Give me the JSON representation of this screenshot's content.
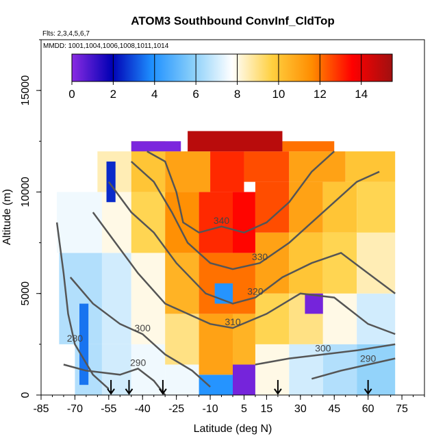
{
  "chart_data": {
    "type": "heatmap",
    "title": "ATOM3 Southbound ConvInf_CldTop",
    "flights_label": "Flts: 2,3,4,5,6,7",
    "dates_label": "MMDD: 1001,1004,1006,1008,1011,1014",
    "xlabel": "Latitude (deg N)",
    "ylabel": "Altitude (m)",
    "xlim": [
      -85,
      85
    ],
    "ylim": [
      0,
      17500
    ],
    "x_ticks": [
      -85,
      -70,
      -55,
      -40,
      -25,
      -10,
      5,
      15,
      30,
      45,
      60,
      75
    ],
    "y_ticks": [
      0,
      5000,
      10000,
      15000
    ],
    "colorbar": {
      "ticks": [
        "0",
        "2",
        "4",
        "6",
        "8",
        "10",
        "12",
        "14"
      ],
      "range": [
        0,
        15.5
      ],
      "colors": [
        "#8a2be2",
        "#0000b4",
        "#1e90ff",
        "#87cefa",
        "#ffffff",
        "#ffd040",
        "#ff8c00",
        "#ff0000",
        "#a01010"
      ]
    },
    "cells": [
      {
        "x": [
          -70,
          -58
        ],
        "y": [
          0,
          2500
        ],
        "v": 6.5
      },
      {
        "x": [
          -58,
          -45
        ],
        "y": [
          0,
          2500
        ],
        "v": 7.0
      },
      {
        "x": [
          -45,
          -30
        ],
        "y": [
          0,
          2500
        ],
        "v": 7.5
      },
      {
        "x": [
          -30,
          -15
        ],
        "y": [
          0,
          1500
        ],
        "v": 7.5
      },
      {
        "x": [
          -15,
          0
        ],
        "y": [
          0,
          1000
        ],
        "v": 4.0
      },
      {
        "x": [
          0,
          10
        ],
        "y": [
          0,
          1500
        ],
        "v": 0.3
      },
      {
        "x": [
          10,
          25
        ],
        "y": [
          0,
          2500
        ],
        "v": 8.0
      },
      {
        "x": [
          25,
          40
        ],
        "y": [
          0,
          2500
        ],
        "v": 7.0
      },
      {
        "x": [
          40,
          55
        ],
        "y": [
          0,
          2500
        ],
        "v": 6.5
      },
      {
        "x": [
          55,
          72
        ],
        "y": [
          0,
          2500
        ],
        "v": 6.0
      },
      {
        "x": [
          -77,
          -58
        ],
        "y": [
          2500,
          7000
        ],
        "v": 6.5
      },
      {
        "x": [
          -58,
          -45
        ],
        "y": [
          2500,
          7000
        ],
        "v": 7.0
      },
      {
        "x": [
          -45,
          -30
        ],
        "y": [
          2500,
          7000
        ],
        "v": 8.0
      },
      {
        "x": [
          -30,
          -15
        ],
        "y": [
          1500,
          4000
        ],
        "v": 9.0
      },
      {
        "x": [
          -15,
          0
        ],
        "y": [
          1000,
          4000
        ],
        "v": 11.0
      },
      {
        "x": [
          0,
          10
        ],
        "y": [
          1500,
          4000
        ],
        "v": 10.5
      },
      {
        "x": [
          10,
          25
        ],
        "y": [
          2500,
          5000
        ],
        "v": 9.5
      },
      {
        "x": [
          25,
          40
        ],
        "y": [
          2500,
          5000
        ],
        "v": 9.0
      },
      {
        "x": [
          40,
          55
        ],
        "y": [
          2500,
          5000
        ],
        "v": 8.0
      },
      {
        "x": [
          55,
          72
        ],
        "y": [
          2500,
          5000
        ],
        "v": 7.0
      },
      {
        "x": [
          -30,
          -15
        ],
        "y": [
          4000,
          7000
        ],
        "v": 10.5
      },
      {
        "x": [
          -15,
          0
        ],
        "y": [
          4000,
          7000
        ],
        "v": 12.0
      },
      {
        "x": [
          0,
          10
        ],
        "y": [
          4000,
          7000
        ],
        "v": 12.0
      },
      {
        "x": [
          10,
          25
        ],
        "y": [
          5000,
          8000
        ],
        "v": 11.0
      },
      {
        "x": [
          25,
          40
        ],
        "y": [
          5000,
          8000
        ],
        "v": 10.0
      },
      {
        "x": [
          40,
          55
        ],
        "y": [
          5000,
          8000
        ],
        "v": 9.5
      },
      {
        "x": [
          55,
          72
        ],
        "y": [
          5000,
          8000
        ],
        "v": 8.5
      },
      {
        "x": [
          -78,
          -58
        ],
        "y": [
          7000,
          10000
        ],
        "v": 7.5
      },
      {
        "x": [
          -58,
          -45
        ],
        "y": [
          7000,
          10000
        ],
        "v": 8.0
      },
      {
        "x": [
          -45,
          -30
        ],
        "y": [
          7000,
          10000
        ],
        "v": 9.5
      },
      {
        "x": [
          -30,
          -15
        ],
        "y": [
          7000,
          10000
        ],
        "v": 11.5
      },
      {
        "x": [
          -15,
          0
        ],
        "y": [
          7000,
          10000
        ],
        "v": 13.0
      },
      {
        "x": [
          0,
          10
        ],
        "y": [
          7000,
          10000
        ],
        "v": 13.5
      },
      {
        "x": [
          10,
          25
        ],
        "y": [
          8000,
          10500
        ],
        "v": 12.5
      },
      {
        "x": [
          25,
          40
        ],
        "y": [
          8000,
          10500
        ],
        "v": 11.0
      },
      {
        "x": [
          40,
          55
        ],
        "y": [
          8000,
          10500
        ],
        "v": 10.0
      },
      {
        "x": [
          55,
          72
        ],
        "y": [
          8000,
          10500
        ],
        "v": 9.5
      },
      {
        "x": [
          -60,
          -45
        ],
        "y": [
          10000,
          12000
        ],
        "v": 8.5
      },
      {
        "x": [
          -45,
          -30
        ],
        "y": [
          10000,
          12500
        ],
        "v": 10.0
      },
      {
        "x": [
          -30,
          -10
        ],
        "y": [
          10000,
          12000
        ],
        "v": 11.0
      },
      {
        "x": [
          -10,
          5
        ],
        "y": [
          10000,
          12000
        ],
        "v": 13.0
      },
      {
        "x": [
          5,
          25
        ],
        "y": [
          10500,
          12000
        ],
        "v": 12.5
      },
      {
        "x": [
          25,
          50
        ],
        "y": [
          10500,
          12000
        ],
        "v": 11.0
      },
      {
        "x": [
          50,
          72
        ],
        "y": [
          10500,
          12000
        ],
        "v": 10.0
      },
      {
        "x": [
          -45,
          -23
        ],
        "y": [
          12000,
          12500
        ],
        "v": 0.2
      },
      {
        "x": [
          -20,
          22
        ],
        "y": [
          12000,
          13000
        ],
        "v": 15.0
      },
      {
        "x": [
          22,
          45
        ],
        "y": [
          12000,
          12500
        ],
        "v": 12.0
      },
      {
        "x": [
          32,
          40
        ],
        "y": [
          4000,
          5000
        ],
        "v": 0.3
      },
      {
        "x": [
          -8,
          0
        ],
        "y": [
          4500,
          5500
        ],
        "v": 4.0
      },
      {
        "x": [
          -68,
          -64
        ],
        "y": [
          500,
          4500
        ],
        "v": 3.5
      },
      {
        "x": [
          -56,
          -52
        ],
        "y": [
          9500,
          11500
        ],
        "v": 2.5
      }
    ],
    "contours": [
      {
        "label": "280",
        "points": [
          [
            -78,
            8500
          ],
          [
            -75,
            6000
          ],
          [
            -73,
            4000
          ],
          [
            -70,
            2500
          ],
          [
            -62,
            1000
          ],
          [
            -55,
            300
          ]
        ]
      },
      {
        "label": "290",
        "points": [
          [
            -75,
            1500
          ],
          [
            -65,
            1200
          ],
          [
            -50,
            1000
          ],
          [
            -42,
            1300
          ],
          [
            -35,
            700
          ],
          [
            -30,
            0
          ]
        ]
      },
      {
        "label": "300",
        "points": [
          [
            -72,
            5800
          ],
          [
            -62,
            4500
          ],
          [
            -50,
            3500
          ],
          [
            -40,
            3000
          ],
          [
            -30,
            2000
          ],
          [
            -18,
            1200
          ],
          [
            -10,
            400
          ]
        ]
      },
      {
        "label": "310",
        "points": [
          [
            -62,
            9000
          ],
          [
            -52,
            7500
          ],
          [
            -42,
            6000
          ],
          [
            -30,
            4500
          ],
          [
            -10,
            3500
          ],
          [
            0,
            3300
          ],
          [
            15,
            4000
          ],
          [
            30,
            5000
          ],
          [
            45,
            4800
          ],
          [
            60,
            3500
          ],
          [
            72,
            3000
          ]
        ]
      },
      {
        "label": "320",
        "points": [
          [
            -55,
            10500
          ],
          [
            -45,
            9000
          ],
          [
            -35,
            8000
          ],
          [
            -25,
            6500
          ],
          [
            -12,
            5000
          ],
          [
            0,
            4500
          ],
          [
            10,
            4800
          ],
          [
            22,
            5800
          ],
          [
            35,
            6500
          ],
          [
            48,
            7000
          ],
          [
            60,
            6000
          ],
          [
            72,
            5000
          ]
        ]
      },
      {
        "label": "330",
        "points": [
          [
            -45,
            11500
          ],
          [
            -35,
            10500
          ],
          [
            -27,
            9000
          ],
          [
            -20,
            7500
          ],
          [
            -10,
            6500
          ],
          [
            0,
            6200
          ],
          [
            12,
            6500
          ],
          [
            25,
            7500
          ],
          [
            35,
            8500
          ],
          [
            45,
            9500
          ],
          [
            55,
            10500
          ],
          [
            65,
            11000
          ]
        ]
      },
      {
        "label": "340",
        "points": [
          [
            -38,
            12000
          ],
          [
            -30,
            11500
          ],
          [
            -25,
            10000
          ],
          [
            -22,
            8500
          ],
          [
            -15,
            8000
          ],
          [
            -5,
            8300
          ],
          [
            5,
            8000
          ],
          [
            15,
            8500
          ],
          [
            25,
            9500
          ],
          [
            35,
            11000
          ],
          [
            45,
            12000
          ]
        ]
      },
      {
        "label": "300",
        "points": [
          [
            10,
            1500
          ],
          [
            25,
            1800
          ],
          [
            40,
            2000
          ],
          [
            55,
            2200
          ],
          [
            72,
            2500
          ]
        ]
      },
      {
        "label": "290",
        "points": [
          [
            35,
            800
          ],
          [
            48,
            1200
          ],
          [
            60,
            1500
          ],
          [
            72,
            1800
          ]
        ]
      }
    ],
    "arrows_x": [
      -54,
      -46,
      -31,
      20,
      60
    ]
  }
}
